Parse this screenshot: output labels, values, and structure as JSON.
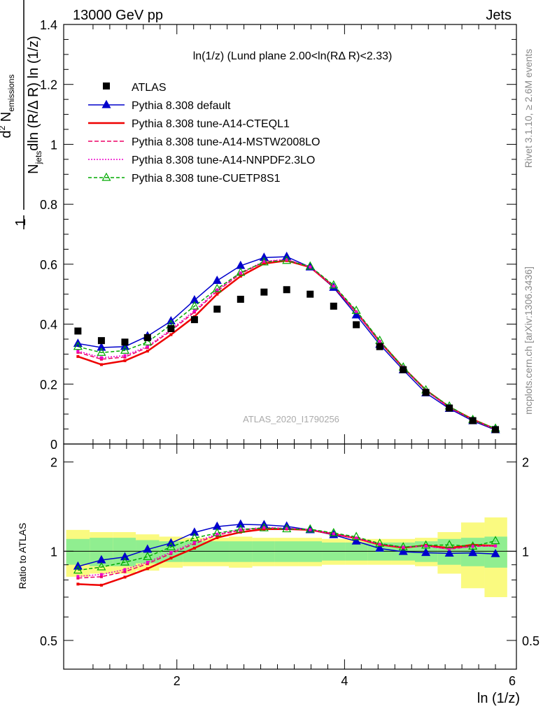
{
  "header": {
    "left": "13000 GeV pp",
    "right": "Jets"
  },
  "side_text": {
    "rivet": "Rivet 3.1.10, ≥ 2.6M events",
    "mcplots": "mcplots.cern.ch [arXiv:1306.3436]"
  },
  "watermark": "ATLAS_2020_I1790256",
  "chart_data": {
    "type": "line",
    "title": "ln(1/z) (Lund plane 2.00<ln(RΔ R)<2.33)",
    "xlabel": "ln (1/z)",
    "ylabel_main": "1/N_jets d²N_emissions / dln(R/Δ R) ln(1/z)",
    "ylabel_ratio": "Ratio to ATLAS",
    "xlim": [
      0.65,
      6.05
    ],
    "ylim_main": [
      0,
      1.4
    ],
    "ylim_ratio": [
      0.4,
      2.3
    ],
    "ratio_scale": "log",
    "x_ticks": [
      "2",
      "4",
      "6"
    ],
    "y_ticks_main": [
      "0",
      "0.2",
      "0.4",
      "0.6",
      "0.8",
      "1",
      "1.2",
      "1.4"
    ],
    "y_ticks_ratio": [
      "0.5",
      "1",
      "2"
    ],
    "x": [
      0.82,
      1.1,
      1.38,
      1.65,
      1.93,
      2.21,
      2.48,
      2.76,
      3.04,
      3.31,
      3.59,
      3.87,
      4.14,
      4.42,
      4.7,
      4.97,
      5.25,
      5.53,
      5.8
    ],
    "bin_edges": [
      0.68,
      0.96,
      1.24,
      1.51,
      1.79,
      2.07,
      2.34,
      2.62,
      2.9,
      3.17,
      3.45,
      3.73,
      4.01,
      4.28,
      4.56,
      4.84,
      5.11,
      5.39,
      5.67,
      5.94
    ],
    "data": {
      "name": "ATLAS",
      "values": [
        0.377,
        0.345,
        0.34,
        0.355,
        0.385,
        0.415,
        0.45,
        0.483,
        0.507,
        0.515,
        0.5,
        0.46,
        0.398,
        0.325,
        0.248,
        0.172,
        0.12,
        0.078,
        0.048
      ]
    },
    "band_inner": [
      0.1,
      0.11,
      0.11,
      0.09,
      0.08,
      0.08,
      0.08,
      0.08,
      0.08,
      0.08,
      0.08,
      0.07,
      0.07,
      0.07,
      0.07,
      0.08,
      0.1,
      0.11,
      0.12
    ],
    "band_outer": [
      0.18,
      0.16,
      0.16,
      0.14,
      0.12,
      0.11,
      0.11,
      0.12,
      0.11,
      0.11,
      0.11,
      0.1,
      0.1,
      0.1,
      0.1,
      0.11,
      0.16,
      0.25,
      0.3
    ],
    "series": [
      {
        "name": "Pythia 8.308 default",
        "color": "#0000cc",
        "dash": "",
        "marker": "triangle-filled",
        "values": [
          0.335,
          0.322,
          0.325,
          0.36,
          0.41,
          0.48,
          0.545,
          0.595,
          0.622,
          0.625,
          0.59,
          0.522,
          0.43,
          0.332,
          0.247,
          0.17,
          0.118,
          0.077,
          0.047
        ]
      },
      {
        "name": "Pythia 8.308 tune-A14-CTEQL1",
        "color": "#ee0000",
        "dash": "",
        "marker": "square-small",
        "values": [
          0.292,
          0.265,
          0.278,
          0.31,
          0.365,
          0.425,
          0.5,
          0.56,
          0.602,
          0.612,
          0.59,
          0.526,
          0.44,
          0.342,
          0.255,
          0.18,
          0.123,
          0.082,
          0.05
        ]
      },
      {
        "name": "Pythia 8.308 tune-A14-MSTW2008LO",
        "color": "#ee0066",
        "dash": "6,3",
        "marker": "square-small",
        "values": [
          0.306,
          0.283,
          0.29,
          0.322,
          0.378,
          0.44,
          0.51,
          0.568,
          0.608,
          0.615,
          0.591,
          0.527,
          0.441,
          0.343,
          0.256,
          0.179,
          0.122,
          0.081,
          0.05
        ]
      },
      {
        "name": "Pythia 8.308 tune-A14-NNPDF2.3LO",
        "color": "#ee00cc",
        "dash": "2,2",
        "marker": "square-small",
        "values": [
          0.31,
          0.288,
          0.295,
          0.326,
          0.382,
          0.445,
          0.514,
          0.571,
          0.61,
          0.616,
          0.591,
          0.526,
          0.44,
          0.343,
          0.256,
          0.179,
          0.122,
          0.081,
          0.05
        ]
      },
      {
        "name": "Pythia 8.308 tune-CUETP8S1",
        "color": "#00aa00",
        "dash": "5,3",
        "marker": "triangle-open",
        "values": [
          0.325,
          0.305,
          0.312,
          0.34,
          0.398,
          0.46,
          0.518,
          0.572,
          0.607,
          0.612,
          0.593,
          0.53,
          0.445,
          0.345,
          0.256,
          0.18,
          0.126,
          0.081,
          0.052
        ]
      }
    ],
    "legend_placement": "top-left"
  }
}
